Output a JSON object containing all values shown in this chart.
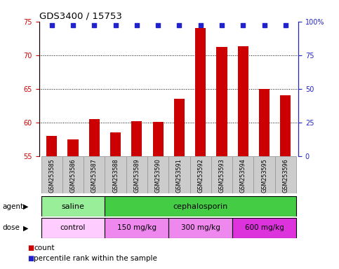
{
  "title": "GDS3400 / 15753",
  "samples": [
    "GSM253585",
    "GSM253586",
    "GSM253587",
    "GSM253588",
    "GSM253589",
    "GSM253590",
    "GSM253591",
    "GSM253592",
    "GSM253593",
    "GSM253594",
    "GSM253595",
    "GSM253596"
  ],
  "counts": [
    58.0,
    57.5,
    60.5,
    58.5,
    60.2,
    60.1,
    63.5,
    74.0,
    71.2,
    71.3,
    65.0,
    64.0
  ],
  "percentile_rank": 97.0,
  "ylim_left": [
    55,
    75
  ],
  "ylim_right": [
    0,
    100
  ],
  "yticks_left": [
    55,
    60,
    65,
    70,
    75
  ],
  "yticks_right": [
    0,
    25,
    50,
    75,
    100
  ],
  "ytick_labels_right": [
    "0",
    "25",
    "50",
    "75",
    "100%"
  ],
  "bar_color": "#cc0000",
  "dot_color": "#2222cc",
  "bar_bottom": 55,
  "bar_width": 0.5,
  "agent_groups": [
    {
      "label": "saline",
      "start": 0,
      "end": 3,
      "color": "#99ee99"
    },
    {
      "label": "cephalosporin",
      "start": 3,
      "end": 12,
      "color": "#44cc44"
    }
  ],
  "dose_groups": [
    {
      "label": "control",
      "start": 0,
      "end": 3,
      "color": "#ffccff"
    },
    {
      "label": "150 mg/kg",
      "start": 3,
      "end": 6,
      "color": "#ee88ee"
    },
    {
      "label": "300 mg/kg",
      "start": 6,
      "end": 9,
      "color": "#ee88ee"
    },
    {
      "label": "600 mg/kg",
      "start": 9,
      "end": 12,
      "color": "#ee44ee"
    }
  ],
  "legend_items": [
    {
      "label": "count",
      "color": "#cc0000"
    },
    {
      "label": "percentile rank within the sample",
      "color": "#2222cc"
    }
  ],
  "grid_yticks": [
    60,
    65,
    70
  ],
  "label_box_color": "#cccccc",
  "label_box_edge": "#999999",
  "background_color": "#ffffff",
  "tick_color_left": "#cc0000",
  "tick_color_right": "#2222cc"
}
